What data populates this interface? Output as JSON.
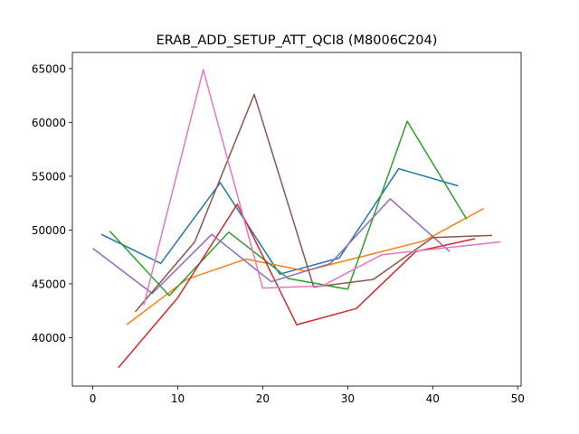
{
  "chart_data": {
    "type": "line",
    "title": "ERAB_ADD_SETUP_ATT_QCI8 (M8006C204)",
    "xlabel": "",
    "ylabel": "",
    "xlim": [
      -2.4,
      50.4
    ],
    "ylim": [
      35500,
      66500
    ],
    "x_ticks": [
      0,
      10,
      20,
      30,
      40,
      50
    ],
    "y_ticks": [
      40000,
      45000,
      50000,
      55000,
      60000,
      65000
    ],
    "x_tick_labels": [
      "0",
      "10",
      "20",
      "30",
      "40",
      "50"
    ],
    "y_tick_labels": [
      "40000",
      "45000",
      "50000",
      "55000",
      "60000",
      "65000"
    ],
    "grid": false,
    "legend": "none",
    "series": [
      {
        "color": "#1f77b4",
        "x": [
          1,
          8,
          15,
          22,
          29,
          36,
          43
        ],
        "y": [
          49600,
          46900,
          54400,
          45900,
          47400,
          55700,
          54100
        ]
      },
      {
        "color": "#ff7f0e",
        "x": [
          4,
          11,
          18,
          25,
          32,
          39,
          46
        ],
        "y": [
          41200,
          45400,
          47300,
          46200,
          47600,
          49000,
          52000
        ]
      },
      {
        "color": "#2ca02c",
        "x": [
          2,
          9,
          16,
          23,
          30,
          37,
          44
        ],
        "y": [
          49900,
          43900,
          49800,
          45500,
          44500,
          60100,
          51000
        ]
      },
      {
        "color": "#d62728",
        "x": [
          3,
          10,
          17,
          24,
          31,
          38,
          45
        ],
        "y": [
          37200,
          43700,
          52400,
          41200,
          42700,
          48000,
          49200
        ]
      },
      {
        "color": "#9467bd",
        "x": [
          0,
          7,
          14,
          21,
          28,
          35,
          42
        ],
        "y": [
          48300,
          44100,
          49600,
          45200,
          46900,
          52900,
          48000
        ]
      },
      {
        "color": "#8c564b",
        "x": [
          5,
          12,
          19,
          26,
          33,
          40,
          47
        ],
        "y": [
          42400,
          48900,
          62600,
          44700,
          45400,
          49300,
          49500
        ]
      },
      {
        "color": "#e377c2",
        "x": [
          6,
          13,
          20,
          27,
          34,
          41,
          48
        ],
        "y": [
          43000,
          64900,
          44600,
          44800,
          47700,
          48300,
          48900
        ]
      }
    ]
  }
}
